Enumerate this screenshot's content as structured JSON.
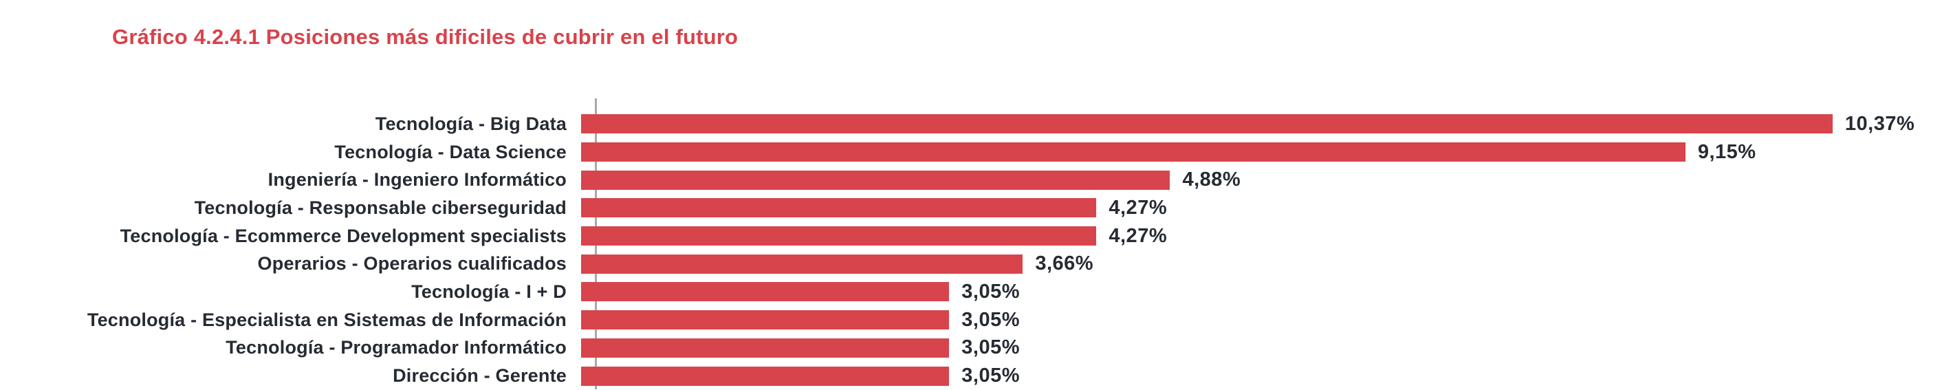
{
  "title": "Gráfico 4.2.4.1 Posiciones más dificiles de cubrir en el futuro",
  "colors": {
    "title": "#d8434b",
    "bar": "#d8444b",
    "text": "#262b33",
    "axis": "#a8a8a8",
    "background": "#ffffff"
  },
  "chart_data": {
    "type": "bar",
    "orientation": "horizontal",
    "title": "Gráfico 4.2.4.1 Posiciones más dificiles de cubrir en el futuro",
    "categories": [
      "Tecnología - Big Data",
      "Tecnología - Data Science",
      "Ingeniería - Ingeniero Informático",
      "Tecnología - Responsable ciberseguridad",
      "Tecnología - Ecommerce Development specialists",
      "Operarios - Operarios cualificados",
      "Tecnología - I + D",
      "Tecnología - Especialista en Sistemas de Información",
      "Tecnología - Programador Informático",
      "Dirección - Gerente"
    ],
    "values": [
      10.37,
      9.15,
      4.88,
      4.27,
      4.27,
      3.66,
      3.05,
      3.05,
      3.05,
      3.05
    ],
    "value_labels": [
      "10,37%",
      "9,15%",
      "4,88%",
      "4,27%",
      "4,27%",
      "3,66%",
      "3,05%",
      "3,05%",
      "3,05%",
      "3,05%"
    ],
    "xlabel": "",
    "ylabel": "",
    "xlim": [
      0,
      11
    ],
    "unit": "%",
    "grid": false,
    "legend": "none",
    "data_labels": "outside-end"
  }
}
